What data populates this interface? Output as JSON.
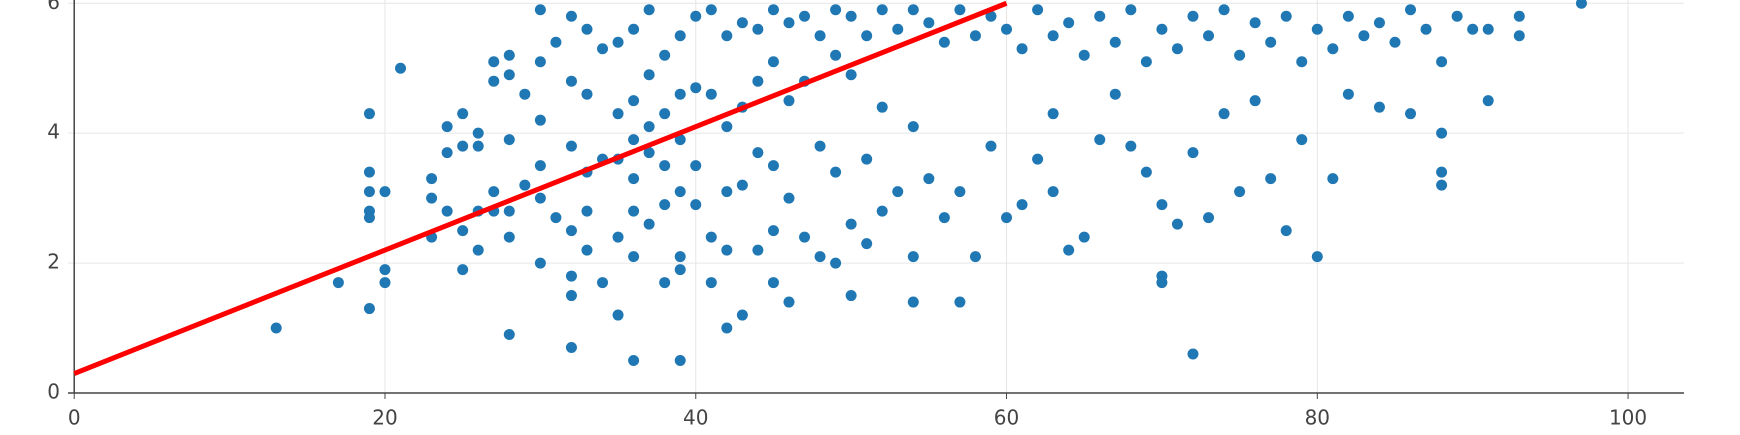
{
  "chart_data": {
    "type": "scatter",
    "xlim": [
      -0.4,
      103.6
    ],
    "ylim": [
      0,
      6.05
    ],
    "xticks": [
      0,
      20,
      40,
      60,
      80,
      100
    ],
    "yticks": [
      0,
      2,
      4,
      6
    ],
    "grid": true,
    "series": [
      {
        "type": "scatter",
        "color": "#1f77b4",
        "x": [
          13,
          17,
          19,
          19,
          19,
          19,
          19,
          19,
          20,
          20,
          20,
          21,
          23,
          23,
          23,
          24,
          24,
          24,
          25,
          25,
          25,
          25,
          26,
          26,
          26,
          26,
          27,
          27,
          27,
          27,
          28,
          28,
          28,
          28,
          28,
          28,
          29,
          29,
          30,
          30,
          30,
          30,
          30,
          30,
          31,
          31,
          32,
          32,
          32,
          32,
          32,
          32,
          32,
          33,
          33,
          33,
          33,
          33,
          34,
          34,
          34,
          35,
          35,
          35,
          35,
          35,
          36,
          36,
          36,
          36,
          36,
          36,
          36,
          37,
          37,
          37,
          37,
          37,
          38,
          38,
          38,
          38,
          38,
          39,
          39,
          39,
          39,
          39,
          39,
          39,
          40,
          40,
          40,
          40,
          41,
          41,
          41,
          41,
          42,
          42,
          42,
          42,
          42,
          43,
          43,
          43,
          43,
          44,
          44,
          44,
          44,
          45,
          45,
          45,
          45,
          45,
          46,
          46,
          46,
          46,
          47,
          47,
          47,
          48,
          48,
          48,
          49,
          49,
          49,
          49,
          50,
          50,
          50,
          50,
          51,
          51,
          51,
          52,
          52,
          52,
          53,
          53,
          54,
          54,
          54,
          54,
          55,
          55,
          56,
          56,
          57,
          57,
          57,
          58,
          58,
          59,
          59,
          60,
          60,
          61,
          61,
          62,
          62,
          63,
          63,
          63,
          64,
          64,
          65,
          65,
          66,
          66,
          67,
          67,
          68,
          68,
          69,
          69,
          70,
          70,
          70,
          70,
          71,
          71,
          72,
          72,
          72,
          73,
          73,
          74,
          74,
          75,
          75,
          76,
          76,
          77,
          77,
          78,
          78,
          79,
          79,
          80,
          80,
          81,
          81,
          82,
          82,
          83,
          84,
          84,
          85,
          86,
          86,
          87,
          88,
          88,
          88,
          88,
          89,
          90,
          91,
          91,
          93,
          93,
          97
        ],
        "values": [
          1,
          1.7,
          4.3,
          3.4,
          3.1,
          2.8,
          2.7,
          1.3,
          3.1,
          1.9,
          1.7,
          5,
          3.3,
          3,
          2.4,
          4.1,
          3.7,
          2.8,
          4.3,
          3.8,
          2.5,
          1.9,
          4,
          3.8,
          2.8,
          2.2,
          5.1,
          4.8,
          3.1,
          2.8,
          5.2,
          4.9,
          3.9,
          2.8,
          2.4,
          0.9,
          4.6,
          3.2,
          5.9,
          5.1,
          4.2,
          3.5,
          3,
          2,
          5.4,
          2.7,
          5.8,
          4.8,
          3.8,
          2.5,
          1.8,
          1.5,
          0.7,
          5.6,
          4.6,
          3.4,
          2.8,
          2.2,
          5.3,
          3.6,
          1.7,
          5.4,
          4.3,
          3.6,
          2.4,
          1.2,
          5.6,
          4.5,
          3.9,
          3.3,
          2.8,
          2.1,
          0.5,
          5.9,
          4.9,
          4.1,
          3.7,
          2.6,
          5.2,
          4.3,
          3.5,
          2.9,
          1.7,
          5.5,
          4.6,
          3.9,
          3.1,
          2.1,
          1.9,
          0.5,
          5.8,
          4.7,
          3.5,
          2.9,
          5.9,
          4.6,
          2.4,
          1.7,
          5.5,
          4.1,
          3.1,
          2.2,
          1,
          5.7,
          4.4,
          3.2,
          1.2,
          5.6,
          4.8,
          3.7,
          2.2,
          5.9,
          5.1,
          3.5,
          2.5,
          1.7,
          5.7,
          4.5,
          3,
          1.4,
          5.8,
          4.8,
          2.4,
          5.5,
          3.8,
          2.1,
          5.9,
          5.2,
          3.4,
          2,
          5.8,
          4.9,
          2.6,
          1.5,
          5.5,
          3.6,
          2.3,
          5.9,
          4.4,
          2.8,
          5.6,
          3.1,
          5.9,
          4.1,
          2.1,
          1.4,
          5.7,
          3.3,
          5.4,
          2.7,
          5.9,
          3.1,
          1.4,
          5.5,
          2.1,
          5.8,
          3.8,
          5.6,
          2.7,
          5.3,
          2.9,
          5.9,
          3.6,
          5.5,
          4.3,
          3.1,
          5.7,
          2.2,
          5.2,
          2.4,
          5.8,
          3.9,
          5.4,
          4.6,
          5.9,
          3.8,
          5.1,
          3.4,
          5.6,
          2.9,
          1.8,
          1.7,
          5.3,
          2.6,
          5.8,
          3.7,
          0.6,
          5.5,
          2.7,
          5.9,
          4.3,
          5.2,
          3.1,
          5.7,
          4.5,
          5.4,
          3.3,
          5.8,
          2.5,
          5.1,
          3.9,
          5.6,
          2.1,
          5.3,
          3.3,
          5.8,
          4.6,
          5.5,
          5.7,
          4.4,
          5.4,
          5.9,
          4.3,
          5.6,
          5.1,
          4,
          3.4,
          3.2,
          5.8,
          5.6,
          4.5,
          5.6,
          5.8,
          5.5,
          6
        ]
      },
      {
        "type": "line",
        "color": "#ff0000",
        "x": [
          0,
          60
        ],
        "values": [
          0.3,
          6
        ]
      }
    ]
  }
}
